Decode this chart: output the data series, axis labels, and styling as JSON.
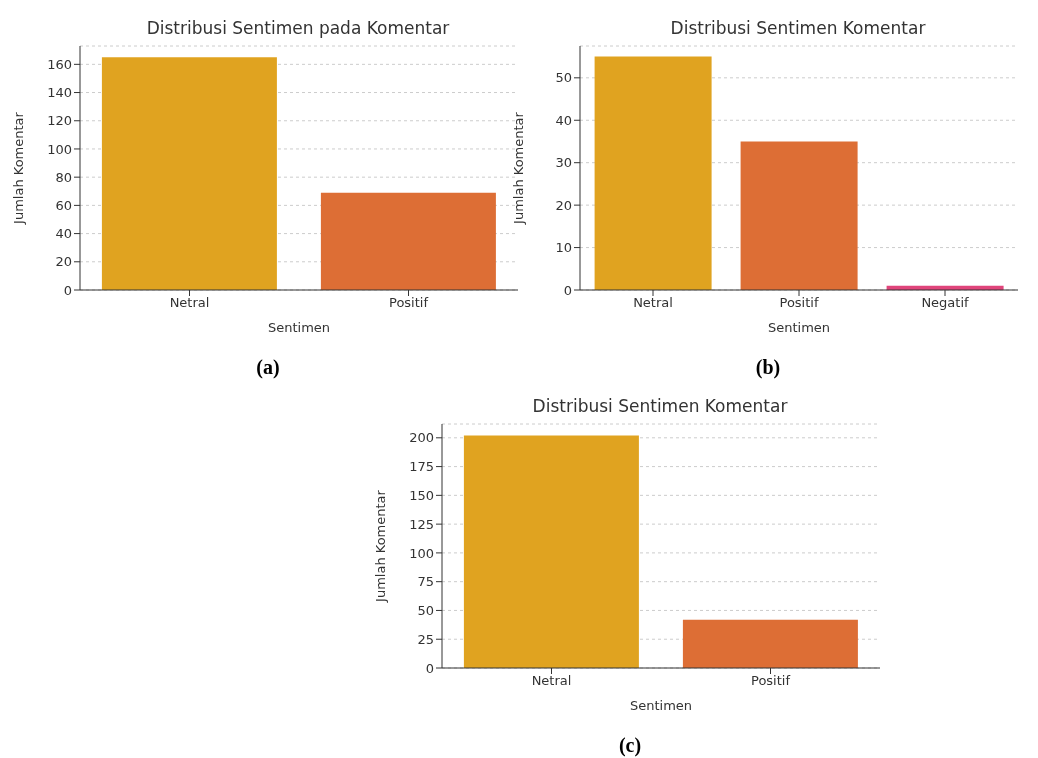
{
  "chart_data": [
    {
      "type": "bar",
      "title": "Distribusi Sentimen pada Komentar",
      "xlabel": "Sentimen",
      "ylabel": "Jumlah Komentar",
      "categories": [
        "Netral",
        "Positif"
      ],
      "values": [
        165,
        69
      ],
      "colors": [
        "#e0a320",
        "#dd6e35"
      ],
      "ylim": [
        0,
        173
      ],
      "yticks": [
        0,
        20,
        40,
        60,
        80,
        100,
        120,
        140,
        160
      ],
      "grid": "y",
      "annotations": [
        "(a)"
      ]
    },
    {
      "type": "bar",
      "title": "Distribusi Sentimen Komentar",
      "xlabel": "Sentimen",
      "ylabel": "Jumlah Komentar",
      "categories": [
        "Netral",
        "Positif",
        "Negatif"
      ],
      "values": [
        55,
        35,
        1
      ],
      "colors": [
        "#e0a320",
        "#dd6e35",
        "#e0457b"
      ],
      "ylim": [
        0,
        57.5
      ],
      "yticks": [
        0,
        10,
        20,
        30,
        40,
        50
      ],
      "grid": "y",
      "annotations": [
        "(b)"
      ]
    },
    {
      "type": "bar",
      "title": "Distribusi Sentimen Komentar",
      "xlabel": "Sentimen",
      "ylabel": "Jumlah Komentar",
      "categories": [
        "Netral",
        "Positif"
      ],
      "values": [
        202,
        42
      ],
      "colors": [
        "#e0a320",
        "#dd6e35"
      ],
      "ylim": [
        0,
        212
      ],
      "yticks": [
        0,
        25,
        50,
        75,
        100,
        125,
        150,
        175,
        200
      ],
      "grid": "y",
      "annotations": [
        "(c)"
      ]
    }
  ]
}
